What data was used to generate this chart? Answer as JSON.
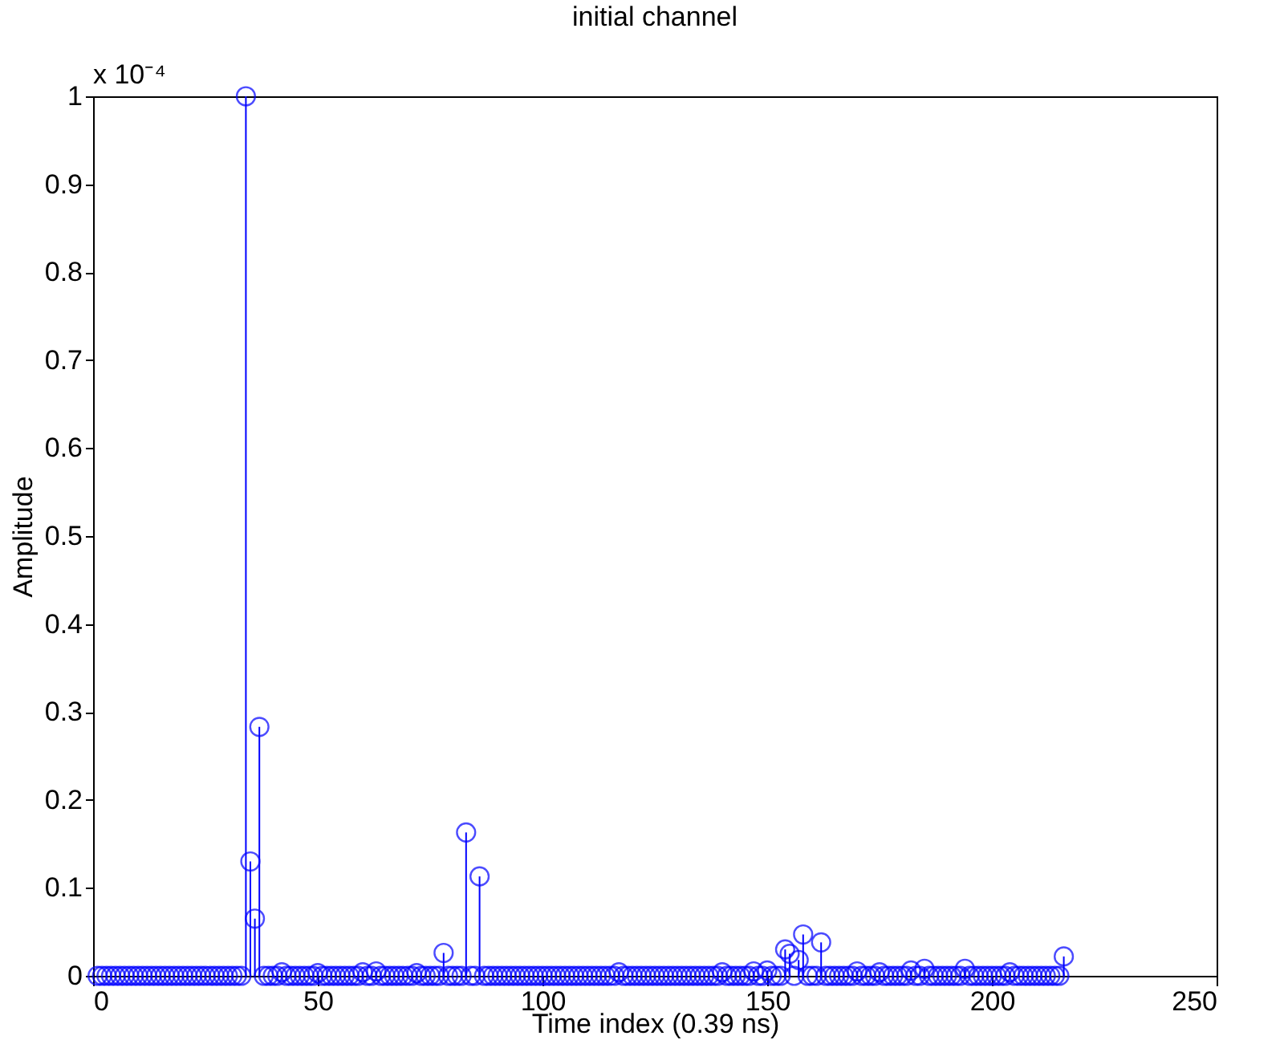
{
  "chart_data": {
    "type": "lollipop",
    "title": "initial channel",
    "xlabel": "Time index (0.39 ns)",
    "ylabel": "Amplitude",
    "annotations": [
      "x 10⁻⁴"
    ],
    "x": [
      1,
      2,
      3,
      4,
      5,
      6,
      7,
      8,
      9,
      10,
      11,
      12,
      13,
      14,
      15,
      16,
      17,
      18,
      19,
      20,
      21,
      22,
      23,
      24,
      25,
      26,
      27,
      28,
      29,
      30,
      31,
      32,
      33,
      34,
      35,
      36,
      37,
      38,
      39,
      40,
      41,
      42,
      43,
      44,
      45,
      46,
      47,
      48,
      49,
      50,
      51,
      52,
      53,
      54,
      55,
      56,
      57,
      58,
      59,
      60,
      61,
      62,
      63,
      64,
      65,
      66,
      67,
      68,
      69,
      70,
      71,
      72,
      73,
      74,
      75,
      76,
      77,
      78,
      79,
      80,
      81,
      82,
      83,
      84,
      85,
      86,
      87,
      88,
      89,
      90,
      91,
      92,
      93,
      94,
      95,
      96,
      97,
      98,
      99,
      100,
      101,
      102,
      103,
      104,
      105,
      106,
      107,
      108,
      109,
      110,
      111,
      112,
      113,
      114,
      115,
      116,
      117,
      118,
      119,
      120,
      121,
      122,
      123,
      124,
      125,
      126,
      127,
      128,
      129,
      130,
      131,
      132,
      133,
      134,
      135,
      136,
      137,
      138,
      139,
      140,
      141,
      142,
      143,
      144,
      145,
      146,
      147,
      148,
      149,
      150,
      151,
      152,
      153,
      154,
      155,
      156,
      157,
      158,
      159,
      160,
      161,
      162,
      163,
      164,
      165,
      166,
      167,
      168,
      169,
      170,
      171,
      172,
      173,
      174,
      175,
      176,
      177,
      178,
      179,
      180,
      181,
      182,
      183,
      184,
      185,
      186,
      187,
      188,
      189,
      190,
      191,
      192,
      193,
      194,
      195,
      196,
      197,
      198,
      199,
      200,
      201,
      202,
      203,
      204,
      205,
      206,
      207,
      208,
      209,
      210,
      211,
      212,
      213,
      214,
      215,
      216
    ],
    "series": [
      {
        "color": "#0000ff",
        "values": [
          0,
          0,
          0,
          0,
          0,
          0,
          0,
          0,
          0,
          0,
          0,
          0,
          0,
          0,
          0,
          0,
          0,
          0,
          0,
          0,
          0,
          0,
          0,
          0,
          0,
          0,
          0,
          0,
          0,
          0,
          0,
          0,
          0,
          1.0,
          0.13,
          0.065,
          0.283,
          0,
          0,
          0,
          0,
          0.004,
          0,
          0,
          0,
          0,
          0,
          0,
          0,
          0.003,
          0,
          0,
          0,
          0,
          0,
          0,
          0,
          0,
          0,
          0.004,
          0,
          0,
          0.005,
          0,
          0,
          0,
          0,
          0,
          0,
          0,
          0,
          0.003,
          0,
          0,
          0,
          0,
          0,
          0.026,
          0,
          0,
          0,
          0,
          0.163,
          0,
          0,
          0.113,
          0,
          0,
          0,
          0,
          0,
          0,
          0,
          0,
          0,
          0,
          0,
          0,
          0,
          0,
          0,
          0,
          0,
          0,
          0,
          0,
          0,
          0,
          0,
          0,
          0,
          0,
          0,
          0,
          0,
          0,
          0.004,
          0,
          0,
          0,
          0,
          0,
          0,
          0,
          0,
          0,
          0,
          0,
          0,
          0,
          0,
          0,
          0,
          0,
          0,
          0,
          0,
          0,
          0,
          0.004,
          0,
          0,
          0,
          0,
          0,
          0,
          0.005,
          0,
          0,
          0.006,
          0,
          0,
          0,
          0.03,
          0.025,
          0,
          0.018,
          0.047,
          0,
          0,
          0,
          0.038,
          0,
          0,
          0,
          0,
          0,
          0,
          0,
          0.005,
          0,
          0,
          0,
          0,
          0.004,
          0,
          0,
          0,
          0,
          0,
          0,
          0.006,
          0,
          0,
          0.008,
          0,
          0,
          0,
          0,
          0,
          0,
          0,
          0,
          0.008,
          0,
          0,
          0,
          0,
          0,
          0,
          0,
          0,
          0,
          0.004,
          0,
          0,
          0,
          0,
          0,
          0,
          0,
          0,
          0,
          0,
          0,
          0.022
        ]
      }
    ],
    "xlim": [
      0,
      250
    ],
    "xticks": [
      0,
      50,
      100,
      150,
      200,
      250
    ],
    "ylim": [
      0,
      1
    ],
    "yticks": [
      0,
      0.1,
      0.2,
      0.3,
      0.4,
      0.5,
      0.6,
      0.7,
      0.8,
      0.9,
      1
    ],
    "marker": "circle",
    "grid": false,
    "legend": false
  }
}
